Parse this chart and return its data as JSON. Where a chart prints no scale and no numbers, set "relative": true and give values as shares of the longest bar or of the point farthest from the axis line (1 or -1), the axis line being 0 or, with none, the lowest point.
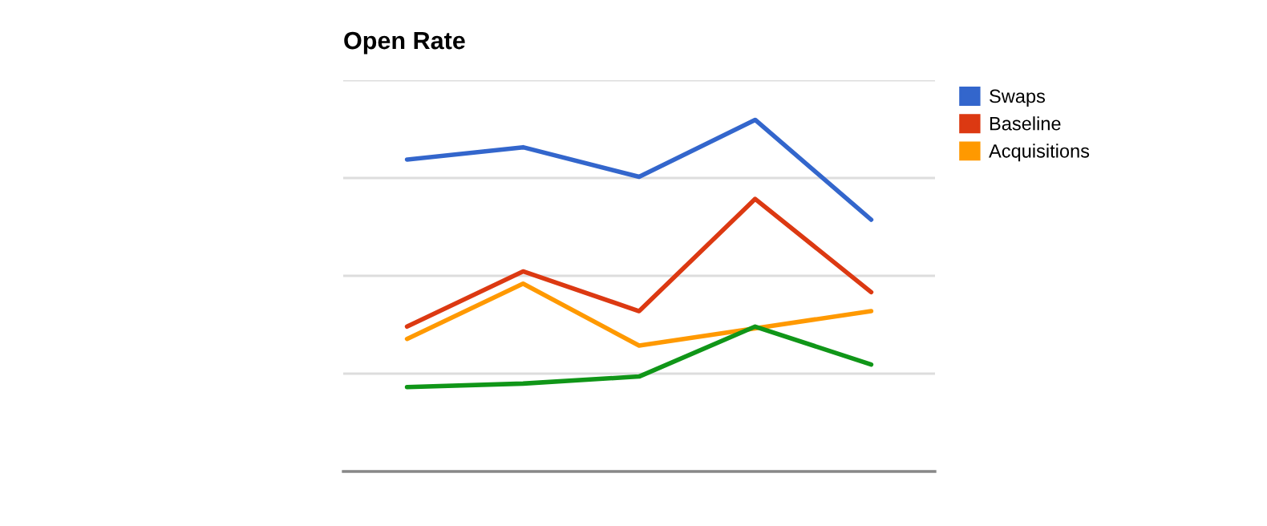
{
  "chart_data": {
    "type": "line",
    "title": "Open Rate",
    "relative": true,
    "grid": "y",
    "legend": "right",
    "categories": [
      null,
      null,
      null,
      null,
      null
    ],
    "series": [
      {
        "name": "Swaps",
        "color": "#3366cc",
        "values": [
          0.887,
          0.922,
          0.838,
          1.0,
          0.716
        ]
      },
      {
        "name": "Baseline",
        "color": "#dc3912",
        "values": [
          0.412,
          0.569,
          0.456,
          0.775,
          0.51
        ]
      },
      {
        "name": "Acquisitions",
        "color": "#ff9900",
        "values": [
          0.377,
          0.534,
          0.358,
          0.407,
          0.456
        ]
      },
      {
        "color": "#109618",
        "values": [
          0.24,
          0.25,
          0.27,
          0.412,
          0.304
        ]
      }
    ]
  }
}
